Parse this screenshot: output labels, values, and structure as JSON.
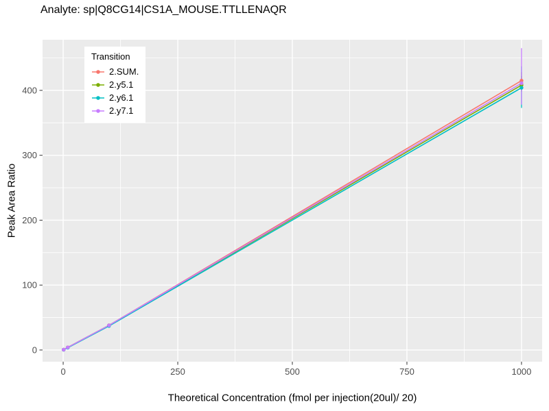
{
  "chart_data": {
    "type": "line",
    "title": "Analyte: sp|Q8CG14|CS1A_MOUSE.TTLLENAQR",
    "xlabel": "Theoretical Concentration (fmol per injection(20ul)/ 20)",
    "ylabel": "Peak Area Ratio",
    "legend_title": "Transition",
    "x": [
      1,
      10,
      100,
      1000
    ],
    "xticks": [
      0,
      250,
      500,
      750,
      1000
    ],
    "yticks": [
      0,
      100,
      200,
      300,
      400
    ],
    "xlim": [
      -45,
      1045
    ],
    "ylim": [
      -18,
      478
    ],
    "panel_bg": "#EBEBEB",
    "grid_color": "#FFFFFF",
    "tick_text_color": "#4D4D4D",
    "tick_mark_color": "#333333",
    "series": [
      {
        "name": "2.SUM.",
        "color": "#F8766D",
        "values": [
          0.5,
          4,
          38,
          415
        ],
        "error_last": [
          402,
          428
        ]
      },
      {
        "name": "2.y5.1",
        "color": "#7CAE00",
        "values": [
          0.5,
          4,
          38,
          408
        ],
        "error_last": [
          398,
          422
        ]
      },
      {
        "name": "2.y6.1",
        "color": "#00BFC4",
        "values": [
          0.4,
          3.5,
          37,
          404
        ],
        "error_last": [
          373,
          437
        ]
      },
      {
        "name": "2.y7.1",
        "color": "#C77CFF",
        "values": [
          0.5,
          4,
          38,
          411
        ],
        "error_last": [
          378,
          465
        ]
      }
    ]
  }
}
